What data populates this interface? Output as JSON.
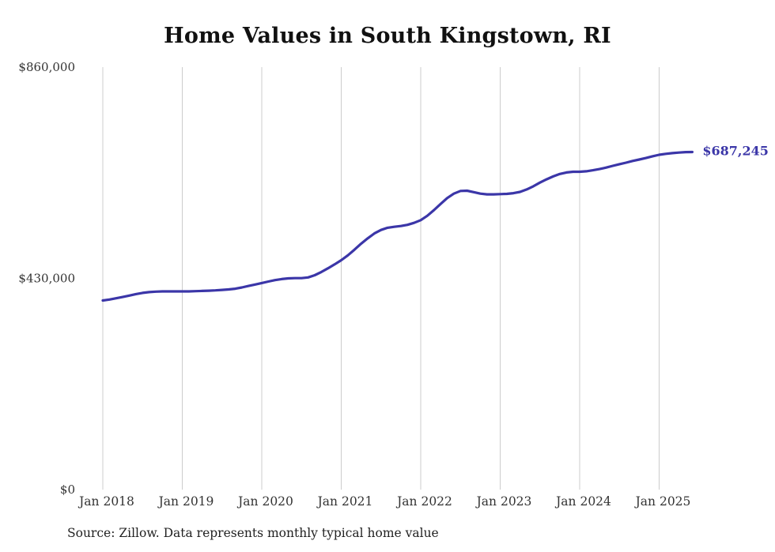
{
  "title": "Home Values in South Kingstown, RI",
  "source_note": "Source: Zillow. Data represents monthly typical home value",
  "end_label": "$687,245",
  "colors": {
    "line": "#3b36a8",
    "end_label": "#3b36a8",
    "grid": "#cccccc",
    "axis_text": "#333333",
    "title_text": "#111111"
  },
  "chart_data": {
    "type": "line",
    "title": "Home Values in South Kingstown, RI",
    "xlabel": "",
    "ylabel": "",
    "ylim": [
      0,
      860000
    ],
    "grid": "vertical-only",
    "legend": "none",
    "y_ticks": [
      {
        "value": 0,
        "label": "$0"
      },
      {
        "value": 430000,
        "label": "$430,000"
      },
      {
        "value": 860000,
        "label": "$860,000"
      }
    ],
    "x_tick_labels": [
      "Jan 2018",
      "Jan 2019",
      "Jan 2020",
      "Jan 2021",
      "Jan 2022",
      "Jan 2023",
      "Jan 2024",
      "Jan 2025"
    ],
    "series_name": "Typical home value",
    "final_value": 687245,
    "months": [
      "2018-01",
      "2018-02",
      "2018-03",
      "2018-04",
      "2018-05",
      "2018-06",
      "2018-07",
      "2018-08",
      "2018-09",
      "2018-10",
      "2018-11",
      "2018-12",
      "2019-01",
      "2019-02",
      "2019-03",
      "2019-04",
      "2019-05",
      "2019-06",
      "2019-07",
      "2019-08",
      "2019-09",
      "2019-10",
      "2019-11",
      "2019-12",
      "2020-01",
      "2020-02",
      "2020-03",
      "2020-04",
      "2020-05",
      "2020-06",
      "2020-07",
      "2020-08",
      "2020-09",
      "2020-10",
      "2020-11",
      "2020-12",
      "2021-01",
      "2021-02",
      "2021-03",
      "2021-04",
      "2021-05",
      "2021-06",
      "2021-07",
      "2021-08",
      "2021-09",
      "2021-10",
      "2021-11",
      "2021-12",
      "2022-01",
      "2022-02",
      "2022-03",
      "2022-04",
      "2022-05",
      "2022-06",
      "2022-07",
      "2022-08",
      "2022-09",
      "2022-10",
      "2022-11",
      "2022-12",
      "2023-01",
      "2023-02",
      "2023-03",
      "2023-04",
      "2023-05",
      "2023-06",
      "2023-07",
      "2023-08",
      "2023-09",
      "2023-10",
      "2023-11",
      "2023-12",
      "2024-01",
      "2024-02",
      "2024-03",
      "2024-04",
      "2024-05",
      "2024-06",
      "2024-07",
      "2024-08",
      "2024-09",
      "2024-10",
      "2024-11",
      "2024-12",
      "2025-01",
      "2025-02",
      "2025-03",
      "2025-04",
      "2025-05",
      "2025-06"
    ],
    "values": [
      385000,
      387000,
      389500,
      392000,
      395000,
      398000,
      400500,
      402000,
      403000,
      403500,
      403500,
      403500,
      403500,
      403500,
      404000,
      404500,
      405000,
      405500,
      406500,
      407500,
      409000,
      411500,
      414500,
      417500,
      420500,
      423500,
      426500,
      428500,
      430000,
      430500,
      430500,
      432000,
      436500,
      443000,
      450500,
      458500,
      467000,
      477000,
      488500,
      500500,
      511500,
      521500,
      528500,
      533000,
      535000,
      536500,
      539000,
      543000,
      548500,
      557500,
      569000,
      581500,
      593500,
      602500,
      608000,
      608500,
      605500,
      602500,
      601000,
      601000,
      601500,
      602000,
      603500,
      606000,
      611000,
      617500,
      625000,
      631500,
      637500,
      642500,
      645500,
      647000,
      647000,
      648000,
      650000,
      652500,
      655500,
      659000,
      662500,
      665500,
      669000,
      672000,
      675000,
      678500,
      681500,
      683500,
      685000,
      686000,
      687000,
      687245
    ]
  }
}
